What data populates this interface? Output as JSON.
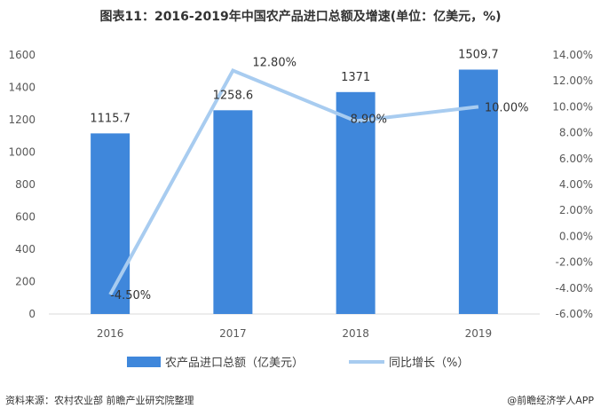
{
  "title": "图表11：2016-2019年中国农产品进口总额及增速(单位：亿美元，%)",
  "source_text": "资料来源：农村农业部 前瞻产业研究院整理",
  "credit_text": "@前瞻经济学人APP",
  "colors": {
    "bar": "#3F87DB",
    "line": "#A8CCF0",
    "axis": "#D9D9D9"
  },
  "chart_data": {
    "type": "bar",
    "categories": [
      "2016",
      "2017",
      "2018",
      "2019"
    ],
    "series": [
      {
        "name": "农产品进口总额（亿美元）",
        "type": "bar",
        "axis": "left",
        "values": [
          1115.7,
          1258.6,
          1371,
          1509.7
        ],
        "labels": [
          "1115.7",
          "1258.6",
          "1371",
          "1509.7"
        ]
      },
      {
        "name": "同比增长（%）",
        "type": "line",
        "axis": "right",
        "values": [
          -4.5,
          12.8,
          8.9,
          10.0
        ],
        "labels": [
          "-4.50%",
          "12.80%",
          "8.90%",
          "10.00%"
        ]
      }
    ],
    "y_left": {
      "min": 0,
      "max": 1600,
      "step": 200,
      "ticks": [
        "0",
        "200",
        "400",
        "600",
        "800",
        "1000",
        "1200",
        "1400",
        "1600"
      ]
    },
    "y_right": {
      "min": -6,
      "max": 14,
      "step": 2,
      "ticks": [
        "-6.00%",
        "-4.00%",
        "-2.00%",
        "0.00%",
        "2.00%",
        "4.00%",
        "6.00%",
        "8.00%",
        "10.00%",
        "12.00%",
        "14.00%"
      ]
    },
    "grid": false,
    "legend": "bottom-center"
  }
}
